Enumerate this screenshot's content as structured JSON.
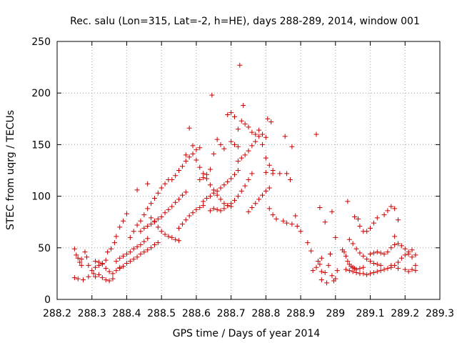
{
  "chart_data": {
    "type": "scatter",
    "title": "Rec. salu (Lon=315, Lat=-2, h=HE), days 288-289, 2014, window 001",
    "xlabel": "GPS time / Days of year 2014",
    "ylabel": "STEC from uqrg / TECUs",
    "xlim": [
      288.2,
      289.3
    ],
    "ylim": [
      0,
      250
    ],
    "x_ticks": [
      "288.2",
      "288.3",
      "288.4",
      "288.5",
      "288.6",
      "288.7",
      "288.8",
      "288.9",
      "289",
      "289.1",
      "289.2",
      "289.3"
    ],
    "y_ticks": [
      "0",
      "50",
      "100",
      "150",
      "200",
      "250"
    ],
    "grid": true,
    "marker": "plus",
    "color": "#cc0000",
    "series": [
      {
        "points": [
          [
            288.25,
            49
          ],
          [
            288.255,
            43
          ],
          [
            288.26,
            40
          ],
          [
            288.265,
            36
          ],
          [
            288.27,
            33
          ],
          [
            288.27,
            39
          ],
          [
            288.28,
            46
          ],
          [
            288.285,
            41
          ],
          [
            288.29,
            33
          ],
          [
            288.25,
            21
          ],
          [
            288.26,
            20
          ],
          [
            288.275,
            19
          ],
          [
            288.29,
            22
          ],
          [
            288.305,
            25
          ],
          [
            288.31,
            22
          ],
          [
            288.32,
            24
          ],
          [
            288.33,
            21
          ],
          [
            288.34,
            19
          ],
          [
            288.35,
            18
          ],
          [
            288.36,
            20
          ],
          [
            288.3,
            28
          ],
          [
            288.31,
            31
          ],
          [
            288.32,
            33
          ],
          [
            288.33,
            35
          ],
          [
            288.34,
            30
          ],
          [
            288.35,
            27
          ],
          [
            288.36,
            25
          ],
          [
            288.37,
            28
          ],
          [
            288.38,
            31
          ],
          [
            288.31,
            37
          ],
          [
            288.32,
            36
          ],
          [
            288.33,
            34
          ],
          [
            288.34,
            38
          ],
          [
            288.345,
            46
          ],
          [
            288.355,
            49
          ],
          [
            288.365,
            55
          ],
          [
            288.37,
            61
          ],
          [
            288.38,
            70
          ],
          [
            288.39,
            76
          ],
          [
            288.4,
            83
          ],
          [
            288.37,
            37
          ],
          [
            288.38,
            40
          ],
          [
            288.39,
            42
          ],
          [
            288.4,
            44
          ],
          [
            288.41,
            46
          ],
          [
            288.42,
            49
          ],
          [
            288.43,
            51
          ],
          [
            288.44,
            53
          ],
          [
            288.45,
            56
          ],
          [
            288.46,
            59
          ],
          [
            288.38,
            30
          ],
          [
            288.39,
            32
          ],
          [
            288.4,
            35
          ],
          [
            288.41,
            37
          ],
          [
            288.42,
            39
          ],
          [
            288.43,
            41
          ],
          [
            288.44,
            44
          ],
          [
            288.45,
            46
          ],
          [
            288.46,
            48
          ],
          [
            288.47,
            50
          ],
          [
            288.48,
            53
          ],
          [
            288.49,
            55
          ],
          [
            288.41,
            60
          ],
          [
            288.42,
            66
          ],
          [
            288.43,
            72
          ],
          [
            288.44,
            76
          ],
          [
            288.45,
            82
          ],
          [
            288.46,
            88
          ],
          [
            288.47,
            93
          ],
          [
            288.48,
            98
          ],
          [
            288.49,
            103
          ],
          [
            288.5,
            108
          ],
          [
            288.51,
            112
          ],
          [
            288.52,
            116
          ],
          [
            288.43,
            106
          ],
          [
            288.46,
            112
          ],
          [
            288.47,
            79
          ],
          [
            288.48,
            75
          ],
          [
            288.49,
            70
          ],
          [
            288.5,
            66
          ],
          [
            288.51,
            63
          ],
          [
            288.52,
            61
          ],
          [
            288.53,
            60
          ],
          [
            288.54,
            58
          ],
          [
            288.55,
            57
          ],
          [
            288.44,
            66
          ],
          [
            288.45,
            69
          ],
          [
            288.46,
            71
          ],
          [
            288.47,
            73
          ],
          [
            288.48,
            76
          ],
          [
            288.49,
            78
          ],
          [
            288.5,
            80
          ],
          [
            288.51,
            84
          ],
          [
            288.52,
            87
          ],
          [
            288.53,
            90
          ],
          [
            288.54,
            94
          ],
          [
            288.55,
            97
          ],
          [
            288.56,
            101
          ],
          [
            288.57,
            104
          ],
          [
            288.53,
            116
          ],
          [
            288.54,
            120
          ],
          [
            288.55,
            125
          ],
          [
            288.56,
            129
          ],
          [
            288.57,
            134
          ],
          [
            288.58,
            138
          ],
          [
            288.59,
            141
          ],
          [
            288.6,
            145
          ],
          [
            288.61,
            147
          ],
          [
            288.55,
            69
          ],
          [
            288.56,
            73
          ],
          [
            288.57,
            77
          ],
          [
            288.58,
            81
          ],
          [
            288.59,
            84
          ],
          [
            288.6,
            87
          ],
          [
            288.61,
            89
          ],
          [
            288.62,
            91
          ],
          [
            288.57,
            140
          ],
          [
            288.58,
            166
          ],
          [
            288.59,
            149
          ],
          [
            288.6,
            135
          ],
          [
            288.61,
            128
          ],
          [
            288.62,
            122
          ],
          [
            288.63,
            117
          ],
          [
            288.64,
            111
          ],
          [
            288.65,
            106
          ],
          [
            288.66,
            101
          ],
          [
            288.67,
            97
          ],
          [
            288.68,
            93
          ],
          [
            288.69,
            91
          ],
          [
            288.7,
            90
          ],
          [
            288.61,
            116
          ],
          [
            288.62,
            118
          ],
          [
            288.63,
            121
          ],
          [
            288.64,
            126
          ],
          [
            288.645,
            198
          ],
          [
            288.65,
            141
          ],
          [
            288.66,
            155
          ],
          [
            288.67,
            150
          ],
          [
            288.68,
            146
          ],
          [
            288.69,
            179
          ],
          [
            288.7,
            181
          ],
          [
            288.71,
            177
          ],
          [
            288.72,
            165
          ],
          [
            288.62,
            95
          ],
          [
            288.63,
            98
          ],
          [
            288.64,
            100
          ],
          [
            288.65,
            103
          ],
          [
            288.66,
            105
          ],
          [
            288.67,
            108
          ],
          [
            288.68,
            111
          ],
          [
            288.69,
            114
          ],
          [
            288.7,
            117
          ],
          [
            288.71,
            121
          ],
          [
            288.72,
            125
          ],
          [
            288.64,
            86
          ],
          [
            288.65,
            88
          ],
          [
            288.66,
            87
          ],
          [
            288.67,
            86
          ],
          [
            288.68,
            88
          ],
          [
            288.69,
            91
          ],
          [
            288.7,
            93
          ],
          [
            288.71,
            96
          ],
          [
            288.72,
            100
          ],
          [
            288.73,
            105
          ],
          [
            288.74,
            110
          ],
          [
            288.75,
            116
          ],
          [
            288.76,
            122
          ],
          [
            288.7,
            153
          ],
          [
            288.71,
            150
          ],
          [
            288.72,
            148
          ],
          [
            288.725,
            227
          ],
          [
            288.73,
            173
          ],
          [
            288.735,
            188
          ],
          [
            288.74,
            170
          ],
          [
            288.75,
            167
          ],
          [
            288.76,
            162
          ],
          [
            288.77,
            160
          ],
          [
            288.78,
            164
          ],
          [
            288.79,
            160
          ],
          [
            288.8,
            157
          ],
          [
            288.805,
            175
          ],
          [
            288.815,
            172
          ],
          [
            288.72,
            134
          ],
          [
            288.73,
            137
          ],
          [
            288.74,
            140
          ],
          [
            288.75,
            144
          ],
          [
            288.76,
            149
          ],
          [
            288.77,
            153
          ],
          [
            288.78,
            158
          ],
          [
            288.79,
            150
          ],
          [
            288.8,
            137
          ],
          [
            288.81,
            130
          ],
          [
            288.82,
            125
          ],
          [
            288.75,
            85
          ],
          [
            288.76,
            89
          ],
          [
            288.77,
            93
          ],
          [
            288.78,
            97
          ],
          [
            288.79,
            101
          ],
          [
            288.8,
            105
          ],
          [
            288.81,
            108
          ],
          [
            288.8,
            123
          ],
          [
            288.82,
            122
          ],
          [
            288.84,
            122
          ],
          [
            288.86,
            122
          ],
          [
            288.87,
            116
          ],
          [
            288.855,
            158
          ],
          [
            288.875,
            148
          ],
          [
            288.81,
            88
          ],
          [
            288.82,
            82
          ],
          [
            288.83,
            78
          ],
          [
            288.85,
            76
          ],
          [
            288.86,
            74
          ],
          [
            288.875,
            73
          ],
          [
            288.885,
            81
          ],
          [
            288.89,
            71
          ],
          [
            288.9,
            66
          ],
          [
            288.92,
            55
          ],
          [
            288.93,
            47
          ],
          [
            288.935,
            28
          ],
          [
            288.945,
            31
          ],
          [
            288.95,
            37
          ],
          [
            288.955,
            34
          ],
          [
            288.96,
            27
          ],
          [
            288.97,
            26
          ],
          [
            288.98,
            33
          ],
          [
            288.99,
            23
          ],
          [
            289.0,
            20
          ],
          [
            289.005,
            28
          ],
          [
            288.945,
            160
          ],
          [
            288.955,
            89
          ],
          [
            288.97,
            75
          ],
          [
            288.99,
            85
          ],
          [
            289.0,
            60
          ],
          [
            288.985,
            44
          ],
          [
            288.96,
            19
          ],
          [
            288.975,
            16
          ],
          [
            288.995,
            18
          ],
          [
            288.96,
            40
          ],
          [
            289.02,
            48
          ],
          [
            289.025,
            46
          ],
          [
            289.03,
            42
          ],
          [
            289.035,
            37
          ],
          [
            289.04,
            34
          ],
          [
            289.045,
            32
          ],
          [
            289.05,
            31
          ],
          [
            289.055,
            30
          ],
          [
            289.06,
            29
          ],
          [
            289.07,
            30
          ],
          [
            289.08,
            31
          ],
          [
            289.035,
            95
          ],
          [
            289.055,
            80
          ],
          [
            289.065,
            78
          ],
          [
            289.07,
            71
          ],
          [
            289.08,
            66
          ],
          [
            289.09,
            66
          ],
          [
            289.1,
            69
          ],
          [
            289.11,
            74
          ],
          [
            289.12,
            79
          ],
          [
            289.04,
            58
          ],
          [
            289.05,
            54
          ],
          [
            289.06,
            49
          ],
          [
            289.07,
            45
          ],
          [
            289.08,
            42
          ],
          [
            289.09,
            39
          ],
          [
            289.1,
            37
          ],
          [
            289.11,
            35
          ],
          [
            289.12,
            34
          ],
          [
            289.13,
            33
          ],
          [
            289.03,
            29
          ],
          [
            289.04,
            28
          ],
          [
            289.05,
            27
          ],
          [
            289.06,
            26
          ],
          [
            289.07,
            25
          ],
          [
            289.08,
            25
          ],
          [
            289.09,
            24
          ],
          [
            289.1,
            25
          ],
          [
            289.11,
            26
          ],
          [
            289.12,
            27
          ],
          [
            289.13,
            28
          ],
          [
            289.14,
            29
          ],
          [
            289.15,
            30
          ],
          [
            289.16,
            31
          ],
          [
            289.17,
            33
          ],
          [
            289.18,
            36
          ],
          [
            289.19,
            40
          ],
          [
            289.2,
            43
          ],
          [
            289.21,
            46
          ],
          [
            289.22,
            48
          ],
          [
            289.1,
            44
          ],
          [
            289.11,
            45
          ],
          [
            289.12,
            46
          ],
          [
            289.13,
            45
          ],
          [
            289.14,
            44
          ],
          [
            289.15,
            46
          ],
          [
            289.16,
            50
          ],
          [
            289.17,
            53
          ],
          [
            289.18,
            54
          ],
          [
            289.19,
            52
          ],
          [
            289.2,
            49
          ],
          [
            289.21,
            44
          ],
          [
            289.22,
            41
          ],
          [
            289.14,
            82
          ],
          [
            289.15,
            86
          ],
          [
            289.16,
            90
          ],
          [
            289.17,
            88
          ],
          [
            289.18,
            77
          ],
          [
            289.17,
            61
          ],
          [
            289.16,
            33
          ],
          [
            289.18,
            30
          ],
          [
            289.2,
            29
          ],
          [
            289.21,
            27
          ],
          [
            289.22,
            29
          ],
          [
            289.23,
            28
          ],
          [
            289.23,
            33
          ],
          [
            289.23,
            43
          ]
        ]
      }
    ]
  }
}
